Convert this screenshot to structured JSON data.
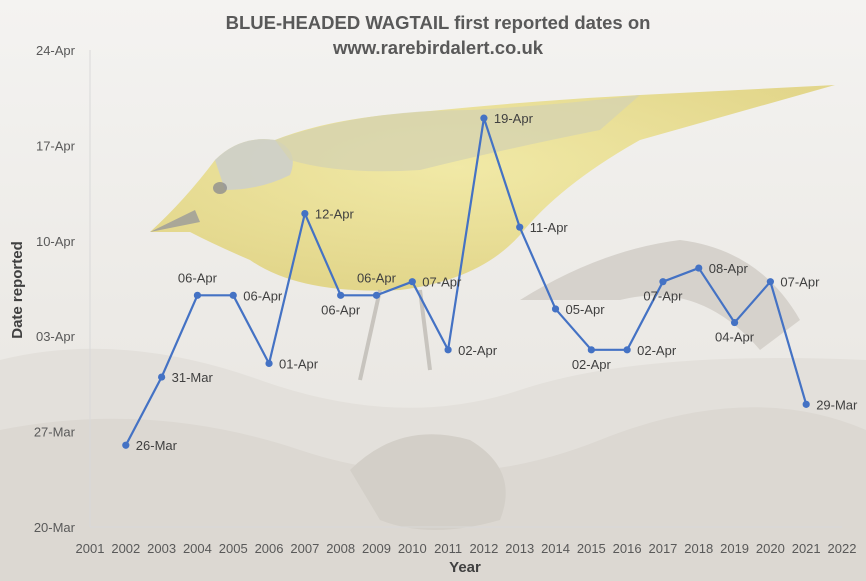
{
  "chart_data": {
    "type": "line",
    "title_lines": [
      "BLUE-HEADED WAGTAIL first reported dates on",
      "www.rarebirdalert.co.uk"
    ],
    "xlabel": "Year",
    "ylabel": "Date reported",
    "x_ticks": [
      2001,
      2002,
      2003,
      2004,
      2005,
      2006,
      2007,
      2008,
      2009,
      2010,
      2011,
      2012,
      2013,
      2014,
      2015,
      2016,
      2017,
      2018,
      2019,
      2020,
      2021,
      2022
    ],
    "xlim": [
      2001,
      2022
    ],
    "y_ticks": [
      {
        "label": "20-Mar",
        "day": 0
      },
      {
        "label": "27-Mar",
        "day": 7
      },
      {
        "label": "03-Apr",
        "day": 14
      },
      {
        "label": "10-Apr",
        "day": 21
      },
      {
        "label": "17-Apr",
        "day": 28
      },
      {
        "label": "24-Apr",
        "day": 35
      }
    ],
    "ylim_day": [
      0,
      35
    ],
    "y_day_zero": "20-Mar",
    "series": [
      {
        "color": "#4472c4",
        "points": [
          {
            "x": 2002,
            "day": 6,
            "label": "26-Mar",
            "pos": "right"
          },
          {
            "x": 2003,
            "day": 11,
            "label": "31-Mar",
            "pos": "right"
          },
          {
            "x": 2004,
            "day": 17,
            "label": "06-Apr",
            "pos": "above"
          },
          {
            "x": 2005,
            "day": 17,
            "label": "06-Apr",
            "pos": "right"
          },
          {
            "x": 2006,
            "day": 12,
            "label": "01-Apr",
            "pos": "right"
          },
          {
            "x": 2007,
            "day": 23,
            "label": "12-Apr",
            "pos": "right"
          },
          {
            "x": 2008,
            "day": 17,
            "label": "06-Apr",
            "pos": "below"
          },
          {
            "x": 2009,
            "day": 17,
            "label": "06-Apr",
            "pos": "above"
          },
          {
            "x": 2010,
            "day": 18,
            "label": "07-Apr",
            "pos": "right"
          },
          {
            "x": 2011,
            "day": 13,
            "label": "02-Apr",
            "pos": "right"
          },
          {
            "x": 2012,
            "day": 30,
            "label": "19-Apr",
            "pos": "right"
          },
          {
            "x": 2013,
            "day": 22,
            "label": "11-Apr",
            "pos": "right"
          },
          {
            "x": 2014,
            "day": 16,
            "label": "05-Apr",
            "pos": "right"
          },
          {
            "x": 2015,
            "day": 13,
            "label": "02-Apr",
            "pos": "below"
          },
          {
            "x": 2016,
            "day": 13,
            "label": "02-Apr",
            "pos": "right"
          },
          {
            "x": 2017,
            "day": 18,
            "label": "07-Apr",
            "pos": "below"
          },
          {
            "x": 2018,
            "day": 19,
            "label": "08-Apr",
            "pos": "right"
          },
          {
            "x": 2019,
            "day": 15,
            "label": "04-Apr",
            "pos": "below"
          },
          {
            "x": 2020,
            "day": 18,
            "label": "07-Apr",
            "pos": "right"
          },
          {
            "x": 2021,
            "day": 9,
            "label": "29-Mar",
            "pos": "right"
          }
        ]
      }
    ],
    "grid": false,
    "legend": "none",
    "colors": {
      "line": "#4472c4",
      "title": "#595959",
      "axis_text": "#595959",
      "axis_title": "#404040",
      "label_text": "#404040"
    }
  }
}
